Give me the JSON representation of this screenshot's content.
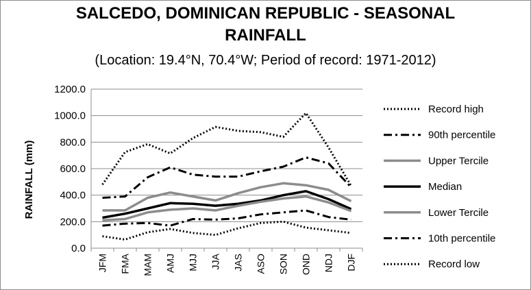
{
  "chart_data": {
    "type": "line",
    "title_line1": "SALCEDO, DOMINICAN REPUBLIC - SEASONAL",
    "title_line2": "RAINFALL",
    "subtitle": "(Location: 19.4°N, 70.4°W; Period of record: 1971-2012)",
    "ylabel": "RAINFALL (mm)",
    "xlabel": "",
    "ylim": [
      0,
      1200
    ],
    "yticks": [
      "0.0",
      "200.0",
      "400.0",
      "600.0",
      "800.0",
      "1000.0",
      "1200.0"
    ],
    "categories": [
      "JFM",
      "FMA",
      "MAM",
      "AMJ",
      "MJJ",
      "JJA",
      "JAS",
      "ASO",
      "SON",
      "OND",
      "NDJ",
      "DJF"
    ],
    "grid": "horizontal",
    "legend_position": "right",
    "series": [
      {
        "name": "Record high",
        "style": "dotted",
        "color": "#000000",
        "values": [
          480,
          725,
          785,
          715,
          830,
          915,
          885,
          875,
          840,
          1020,
          760,
          470
        ]
      },
      {
        "name": "90th percentile",
        "style": "dashdot",
        "color": "#000000",
        "values": [
          380,
          390,
          535,
          610,
          555,
          540,
          540,
          580,
          615,
          685,
          640,
          460
        ]
      },
      {
        "name": "Upper Tercile",
        "style": "solid",
        "color": "#8c8c8c",
        "values": [
          285,
          285,
          380,
          420,
          390,
          360,
          415,
          460,
          490,
          475,
          440,
          355
        ]
      },
      {
        "name": "Median",
        "style": "solid",
        "color": "#000000",
        "values": [
          230,
          260,
          300,
          340,
          335,
          320,
          335,
          360,
          400,
          430,
          370,
          295
        ]
      },
      {
        "name": "Lower Tercile",
        "style": "solid",
        "color": "#8c8c8c",
        "values": [
          210,
          220,
          270,
          290,
          300,
          285,
          320,
          350,
          375,
          390,
          345,
          280
        ]
      },
      {
        "name": "10th percentile",
        "style": "dashdot",
        "color": "#000000",
        "values": [
          170,
          185,
          190,
          170,
          220,
          215,
          225,
          255,
          270,
          285,
          235,
          215
        ]
      },
      {
        "name": "Record low",
        "style": "dotted",
        "color": "#000000",
        "values": [
          90,
          65,
          120,
          145,
          115,
          100,
          150,
          190,
          200,
          155,
          135,
          115
        ]
      }
    ]
  }
}
